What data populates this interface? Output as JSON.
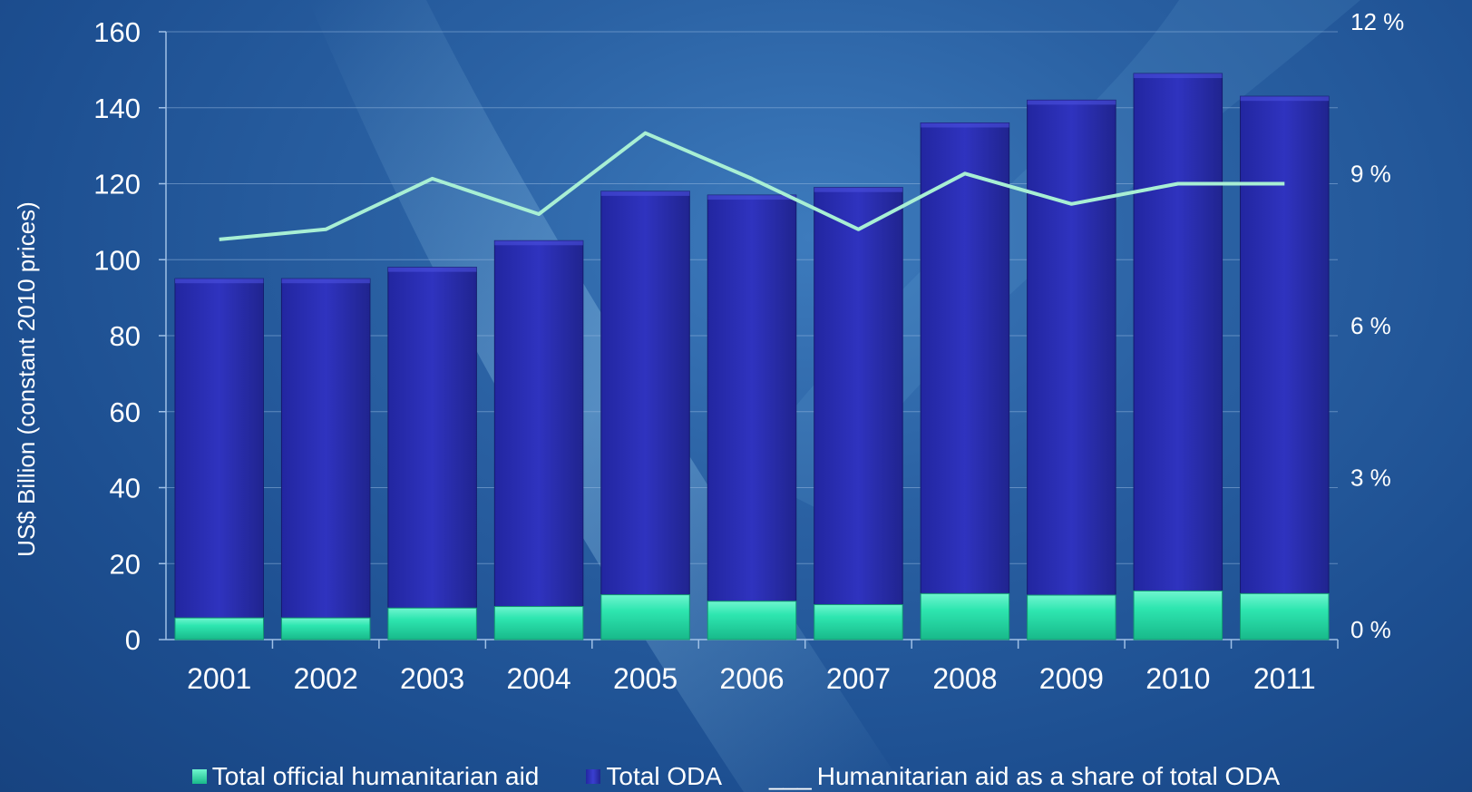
{
  "chart_data": {
    "type": "bar",
    "xlabel": "",
    "ylabel": "US$ Billion (constant 2010 prices)",
    "y2label": "",
    "categories": [
      "2001",
      "2002",
      "2003",
      "2004",
      "2005",
      "2006",
      "2007",
      "2008",
      "2009",
      "2010",
      "2011"
    ],
    "ylim": [
      0,
      160
    ],
    "yticks": [
      0,
      20,
      40,
      60,
      80,
      100,
      120,
      140,
      160
    ],
    "ytick_labels": [
      "0",
      "20",
      "40",
      "60",
      "80",
      "100",
      "120",
      "140",
      "160"
    ],
    "y2lim": [
      0,
      12
    ],
    "y2ticks": [
      0,
      3,
      6,
      9,
      12
    ],
    "y2tick_labels": [
      "0 %",
      "3 %",
      "6 %",
      "9 %",
      "12 %"
    ],
    "grid": true,
    "legend_position": "bottom",
    "series": [
      {
        "name": "Total official humanitarian aid",
        "kind": "bar",
        "color": "#2ee6b0",
        "values": [
          5.7,
          5.7,
          8.3,
          8.7,
          11.8,
          10.1,
          9.2,
          12.1,
          11.7,
          12.8,
          12.1
        ]
      },
      {
        "name": "Total ODA",
        "kind": "bar",
        "color": "#2a2fb3",
        "values": [
          95,
          95,
          98,
          105,
          118,
          117,
          119,
          136,
          142,
          149,
          143
        ]
      },
      {
        "name": "Humanitarian aid as a share of total ODA",
        "kind": "line",
        "axis": "right",
        "color": "#a8efd4",
        "values": [
          7.9,
          8.1,
          9.1,
          8.4,
          10.0,
          9.1,
          8.1,
          9.2,
          8.6,
          9.0,
          9.0
        ]
      }
    ],
    "legend": [
      {
        "marker": "■",
        "label": "Total official humanitarian aid",
        "color": "#2ee6b0"
      },
      {
        "marker": "■",
        "label": "Total ODA",
        "color": "#2a2fb3"
      },
      {
        "marker": "___",
        "label": "Humanitarian aid as a share of total ODA",
        "color": "#ffffff"
      }
    ]
  }
}
